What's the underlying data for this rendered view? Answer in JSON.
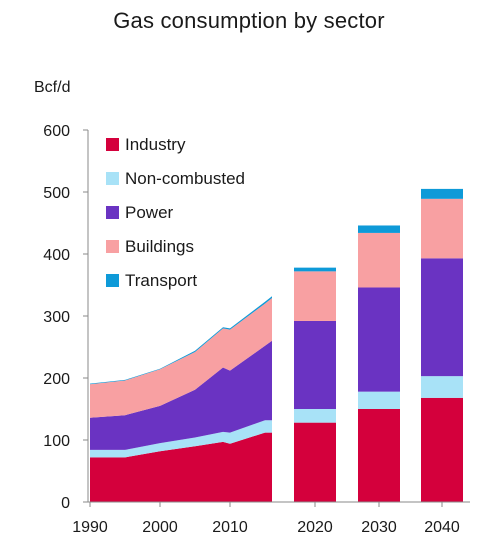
{
  "chart_data": {
    "type": "area",
    "title": "Gas consumption by sector",
    "ylabel": "Bcf/d",
    "xlabel": "",
    "ylim": [
      0,
      600
    ],
    "yticks": [
      0,
      100,
      200,
      300,
      400,
      500,
      600
    ],
    "xticks": [
      1990,
      2000,
      2010,
      2020,
      2030,
      2040
    ],
    "legend_position": "top-left",
    "grid": false,
    "stack_order": [
      "Industry",
      "Non-combusted",
      "Power",
      "Buildings",
      "Transport"
    ],
    "colors": {
      "Industry": "#d4003c",
      "Non-combusted": "#a8e2f7",
      "Power": "#6a33c2",
      "Buildings": "#f8a0a2",
      "Transport": "#0e9ad8"
    },
    "historical": {
      "years": [
        1990,
        1995,
        2000,
        2005,
        2009,
        2010,
        2015,
        2016
      ],
      "series": [
        {
          "name": "Industry",
          "values": [
            72,
            72,
            82,
            90,
            97,
            94,
            112,
            112
          ]
        },
        {
          "name": "Non-combusted",
          "values": [
            12,
            12,
            13,
            14,
            16,
            18,
            20,
            20
          ]
        },
        {
          "name": "Power",
          "values": [
            52,
            56,
            60,
            77,
            104,
            100,
            120,
            128
          ]
        },
        {
          "name": "Buildings",
          "values": [
            54,
            56,
            59,
            61,
            63,
            66,
            68,
            69
          ]
        },
        {
          "name": "Transport",
          "values": [
            1,
            1,
            1,
            2,
            2,
            2,
            3,
            3
          ]
        }
      ]
    },
    "projections": {
      "categories": [
        "2020",
        "2030",
        "2040"
      ],
      "series": [
        {
          "name": "Industry",
          "values": [
            128,
            150,
            168
          ]
        },
        {
          "name": "Non-combusted",
          "values": [
            22,
            28,
            35
          ]
        },
        {
          "name": "Power",
          "values": [
            142,
            168,
            190
          ]
        },
        {
          "name": "Buildings",
          "values": [
            80,
            88,
            96
          ]
        },
        {
          "name": "Transport",
          "values": [
            6,
            12,
            16
          ]
        }
      ]
    }
  }
}
